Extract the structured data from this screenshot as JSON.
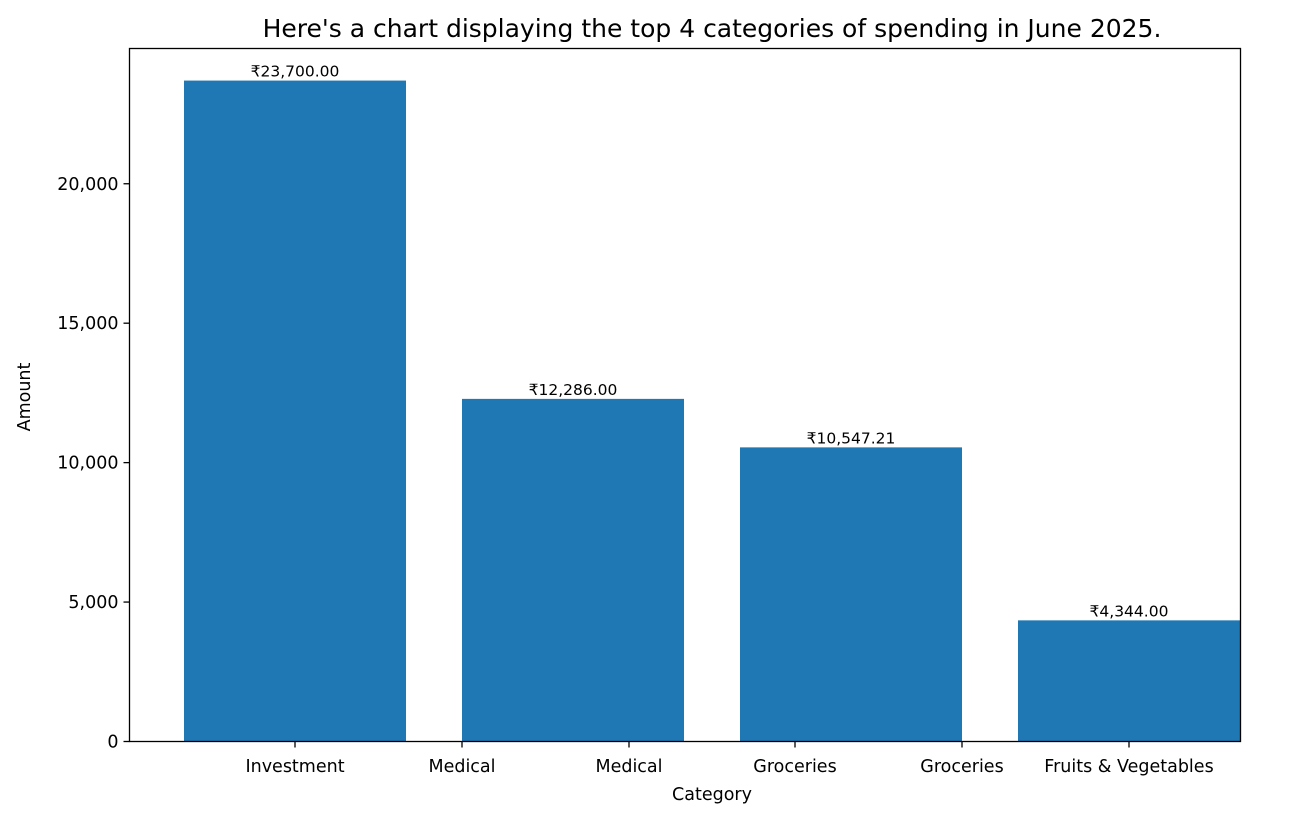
{
  "chart_data": {
    "type": "bar",
    "title": "Here's a chart displaying the top 4 categories of spending in June 2025.",
    "xlabel": "Category",
    "ylabel": "Amount",
    "ylim": [
      0,
      24850
    ],
    "bar_color": "#1f77b4",
    "bars": [
      {
        "value": 23700.0,
        "label": "₹23,700.00"
      },
      {
        "value": 12286.0,
        "label": "₹12,286.00"
      },
      {
        "value": 10547.21,
        "label": "₹10,547.21"
      },
      {
        "value": 4344.0,
        "label": "₹4,344.00"
      }
    ],
    "x_tick_labels": [
      "Investment",
      "Medical",
      "Medical",
      "Groceries",
      "Groceries",
      "Fruits & Vegetables"
    ],
    "y_ticks": [
      0,
      5000,
      10000,
      15000,
      20000
    ],
    "y_tick_labels": [
      "0",
      "5,000",
      "10,000",
      "15,000",
      "20,000"
    ]
  }
}
